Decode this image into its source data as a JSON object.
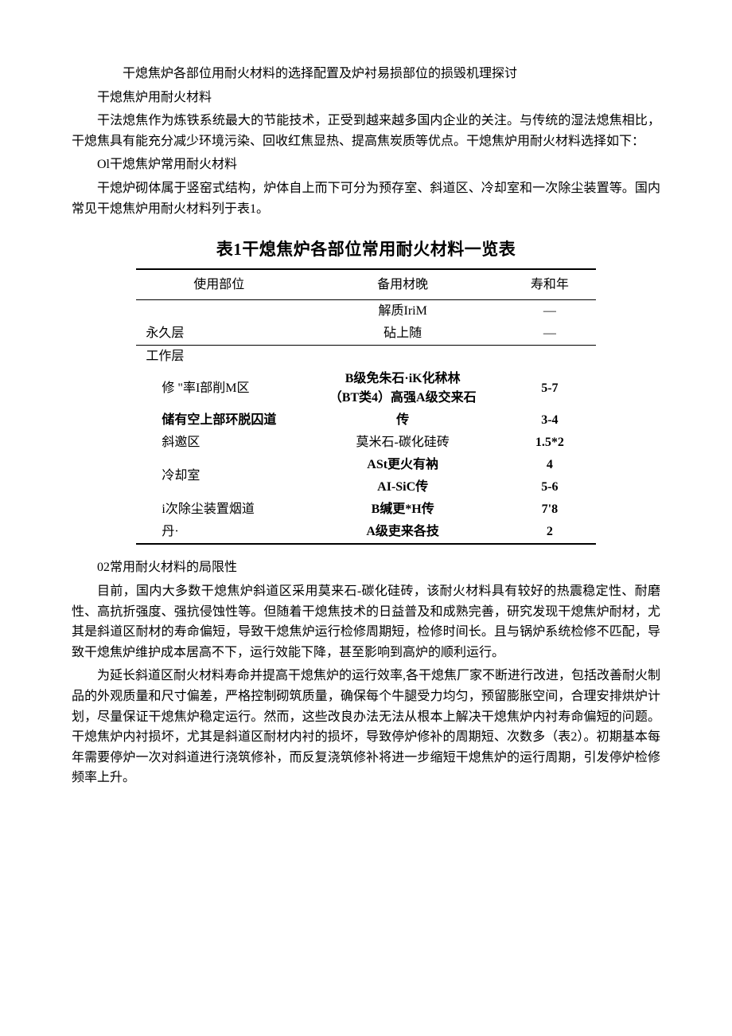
{
  "title": "干熄焦炉各部位用耐火材料的选择配置及炉衬易损部位的损毁机理探讨",
  "subtitle1": "干熄焦炉用耐火材料",
  "para1": "干法熄焦作为炼铁系统最大的节能技术，正受到越来越多国内企业的关注。与传统的湿法熄焦相比，干熄焦具有能充分减少环境污染、回收红焦显热、提高焦炭质等优点。干熄焦炉用耐火材料选择如下：",
  "sect01": "Ol干熄焦炉常用耐火材料",
  "para2": "干熄炉砌体属于竖窑式结构，炉体自上而下可分为预存室、斜道区、冷却室和一次除尘装置等。国内常见干熄焦炉用耐火材料列于表1。",
  "table1": {
    "title": "表1干熄焦炉各部位常用耐火材料一览表",
    "columns": [
      "使用部位",
      "备用材晚",
      "寿和年"
    ],
    "rows": [
      {
        "c1": "",
        "c2": "解质IriM",
        "c3": "—"
      },
      {
        "c1": "永久层",
        "c2": "砧上随",
        "c3": "—"
      },
      {
        "c1": "工作层",
        "c2": "",
        "c3": ""
      },
      {
        "c1": "修 \"率I部削M区",
        "c2a": "B级免朱石·iK化秫林",
        "c2b": "（BT类4）高强A级交来石",
        "c3": "5-7"
      },
      {
        "c1": "储有空上部环脱囚道",
        "c2": "传",
        "c3": "3-4"
      },
      {
        "c1": "斜邀区",
        "c2": "莫米石-碳化硅砖",
        "c3": "1.5*2"
      },
      {
        "c1": "冷却室",
        "c2": "ASt更火有衲",
        "c3": "4"
      },
      {
        "c1": "",
        "c2": "AI-SiC传",
        "c3": "5-6"
      },
      {
        "c1": "i次除尘装置烟道",
        "c2": "B缄更*H传",
        "c3": "7'8"
      },
      {
        "c1": "丹·",
        "c2": "A级吏来各技",
        "c3": "2"
      }
    ]
  },
  "sect02": "02常用耐火材料的局限性",
  "para3": "目前，国内大多数干熄焦炉斜道区采用莫来石-碳化硅砖，该耐火材料具有较好的热震稳定性、耐磨性、高抗折强度、强抗侵蚀性等。但随着干熄焦技术的日益普及和成熟完善，研究发现干熄焦炉耐材，尤其是斜道区耐材的寿命偏短，导致干熄焦炉运行检修周期短，检修时间长。且与锅炉系统检修不匹配，导致干熄焦炉维护成本居高不下，运行效能下降，甚至影响到高炉的顺利运行。",
  "para4": "为延长斜道区耐火材料寿命并提高干熄焦炉的运行效率,各干熄焦厂家不断进行改进，包括改善耐火制品的外观质量和尺寸偏差，严格控制砌筑质量，确保每个牛腿受力均匀，预留膨胀空间，合理安排烘炉计划，尽量保证干熄焦炉稳定运行。然而，这些改良办法无法从根本上解决干熄焦炉内衬寿命偏短的问题。干熄焦炉内衬损坏，尤其是斜道区耐材内衬的损坏，导致停炉修补的周期短、次数多（表2）。初期基本每年需要停炉一次对斜道进行浇筑修补，而反复浇筑修补将进一步缩短干熄焦炉的运行周期，引发停炉检修频率上升。"
}
